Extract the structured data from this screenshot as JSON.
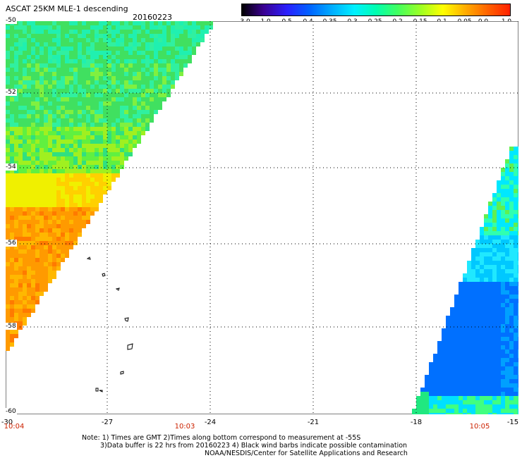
{
  "title": "ASCAT 25KM MLE-1 descending",
  "date": "20160223",
  "colorbar": {
    "labels": [
      "-3.0",
      "-1.0",
      "-0.5",
      "-0.4",
      "-0.35",
      "-0.3",
      "-0.25",
      "-0.2",
      "-0.15",
      "-0.1",
      "-0.05",
      "0.0",
      "1.0"
    ],
    "colors": [
      "#000000",
      "#3a0090",
      "#2a20ff",
      "#0060ff",
      "#00a8ff",
      "#00f0ff",
      "#00ffb0",
      "#40ff60",
      "#a0ff20",
      "#ffff00",
      "#ffb000",
      "#ff6000",
      "#ff2000"
    ]
  },
  "x_ticks": [
    "-30",
    "-27",
    "-24",
    "-21",
    "-18",
    "-15"
  ],
  "y_ticks": [
    "-50",
    "-52",
    "-54",
    "-56",
    "-58",
    "-60"
  ],
  "times": [
    "10:04",
    "10:03",
    "10:05"
  ],
  "notes": [
    "Note: 1) Times are GMT 2)Times along bottom correspond to measurement at -55S",
    "3)Data buffer is 22 hrs from 20160223 4) Black wind barbs indicate possible contamination",
    "NOAA/NESDIS/Center for Satellite Applications and Research"
  ],
  "map": {
    "lon_range": [
      -30,
      -15
    ],
    "lat_range": [
      -60,
      -50
    ],
    "grid": true
  }
}
